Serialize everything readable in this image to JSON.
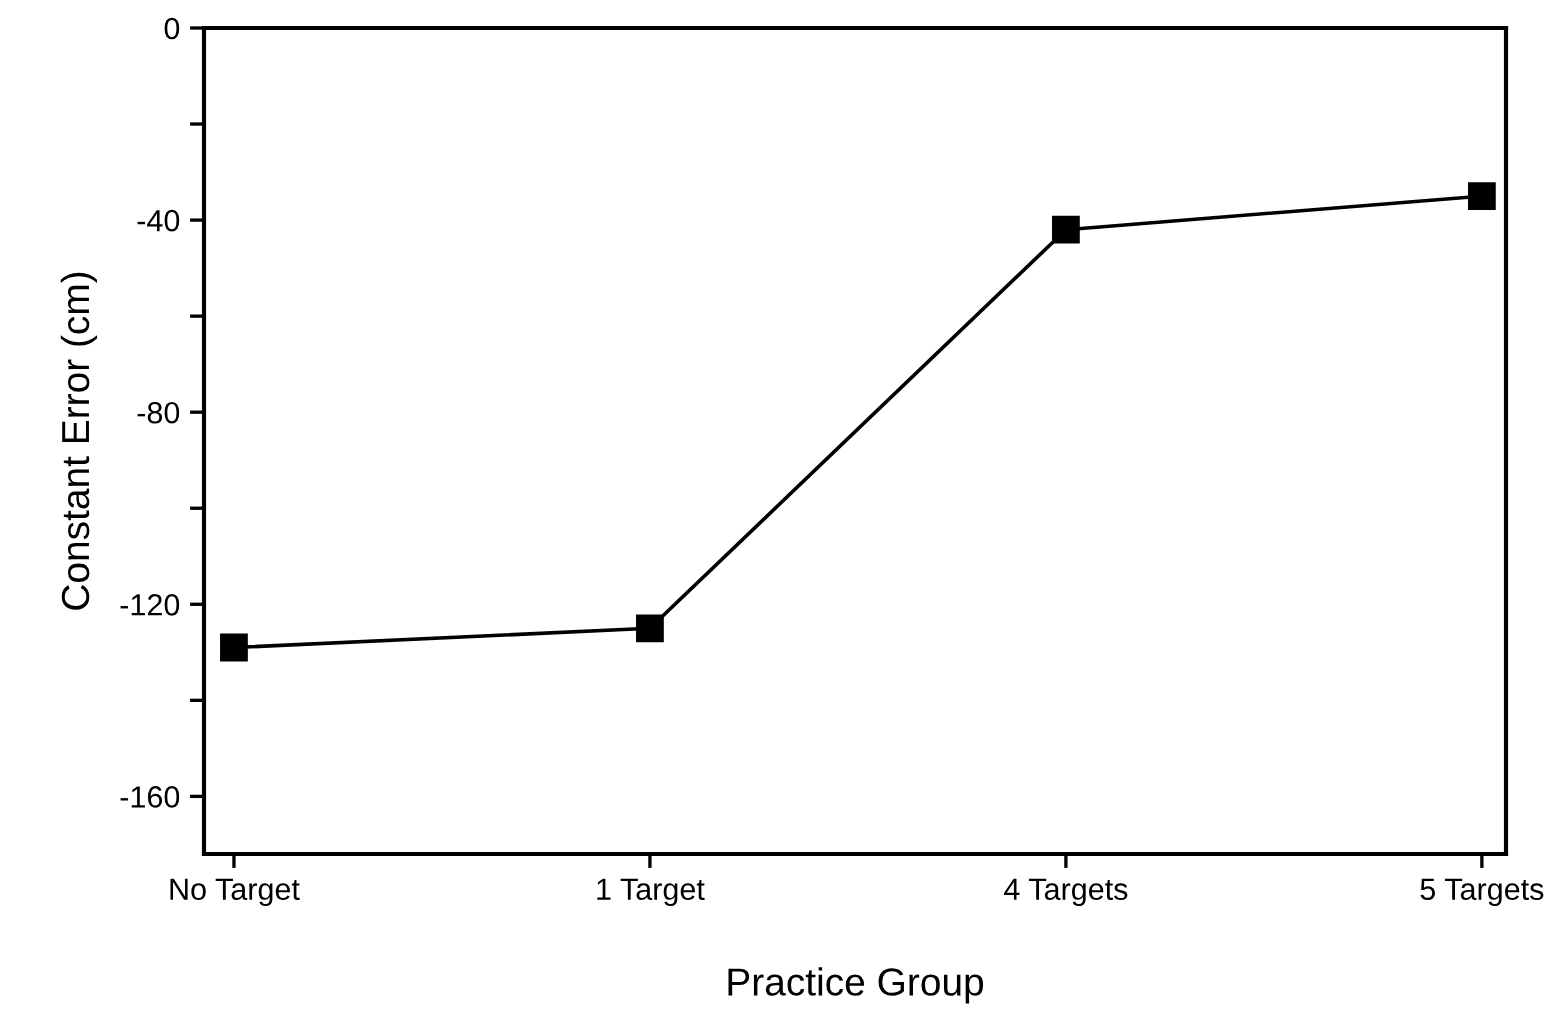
{
  "chart_data": {
    "type": "line",
    "xlabel": "Practice Group",
    "ylabel": "Constant Error (cm)",
    "categories": [
      "No Target",
      "1 Target",
      "4 Targets",
      "5 Targets"
    ],
    "series": [
      {
        "color": "#000000",
        "values": [
          -129,
          -125,
          -42,
          -35
        ]
      }
    ],
    "ylim": [
      -172,
      0
    ],
    "yticks": [
      0,
      {
        "value": -20,
        "label": null
      },
      -40,
      {
        "value": -60,
        "label": null
      },
      -80,
      {
        "value": -100,
        "label": null
      },
      -120,
      {
        "value": -140,
        "label": null
      },
      -160
    ],
    "marker": "square",
    "line_style": "solid",
    "grid": false,
    "legend": false
  }
}
